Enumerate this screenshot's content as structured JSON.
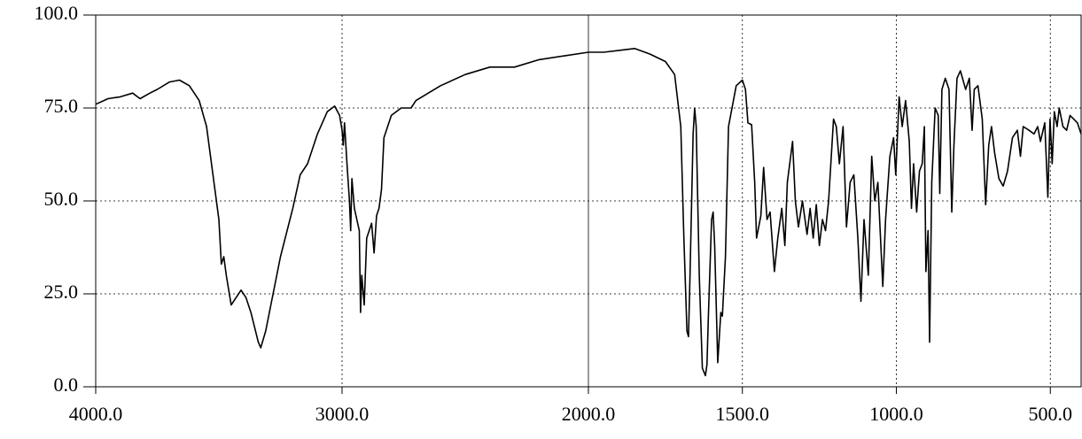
{
  "chart_data": {
    "type": "line",
    "x": [
      4000,
      3950,
      3900,
      3850,
      3820,
      3780,
      3750,
      3700,
      3660,
      3620,
      3580,
      3550,
      3520,
      3500,
      3490,
      3480,
      3470,
      3450,
      3430,
      3410,
      3390,
      3370,
      3340,
      3330,
      3310,
      3280,
      3250,
      3200,
      3170,
      3140,
      3100,
      3060,
      3030,
      3010,
      3000,
      2995,
      2990,
      2980,
      2970,
      2965,
      2960,
      2950,
      2940,
      2930,
      2925,
      2920,
      2910,
      2900,
      2880,
      2870,
      2860,
      2850,
      2840,
      2830,
      2800,
      2760,
      2720,
      2700,
      2650,
      2600,
      2500,
      2400,
      2300,
      2200,
      2100,
      2000,
      1950,
      1900,
      1850,
      1800,
      1750,
      1720,
      1700,
      1690,
      1680,
      1675,
      1670,
      1660,
      1655,
      1650,
      1640,
      1630,
      1620,
      1615,
      1610,
      1600,
      1595,
      1590,
      1580,
      1570,
      1565,
      1555,
      1545,
      1520,
      1500,
      1490,
      1482,
      1470,
      1460,
      1454,
      1440,
      1431,
      1420,
      1410,
      1396,
      1385,
      1372,
      1362,
      1354,
      1337,
      1328,
      1318,
      1305,
      1290,
      1280,
      1270,
      1260,
      1250,
      1240,
      1230,
      1220,
      1204,
      1195,
      1185,
      1173,
      1162,
      1150,
      1138,
      1125,
      1115,
      1105,
      1091,
      1080,
      1070,
      1060,
      1044,
      1035,
      1021,
      1009,
      1002,
      991,
      981,
      970,
      958,
      951,
      944,
      934,
      925,
      916,
      909,
      904,
      897,
      892,
      885,
      874,
      864,
      859,
      852,
      841,
      829,
      820,
      813,
      803,
      792,
      775,
      763,
      754,
      747,
      735,
      721,
      710,
      700,
      691,
      681,
      667,
      653,
      639,
      623,
      607,
      597,
      588,
      569,
      553,
      541,
      532,
      518,
      508,
      501,
      494,
      487,
      478,
      471,
      459,
      447,
      436,
      424,
      412,
      400
    ],
    "values": [
      76,
      77.5,
      78,
      79,
      77.5,
      79,
      80,
      82,
      82.5,
      81,
      77,
      70,
      55,
      45,
      33,
      35,
      30,
      22,
      24,
      26,
      24,
      20,
      12,
      10.5,
      15,
      25,
      35,
      48,
      57,
      60,
      68,
      74,
      75.5,
      73,
      69,
      65,
      71,
      60,
      50,
      42,
      56,
      48,
      45,
      42,
      20,
      30,
      22,
      40,
      44,
      36,
      46,
      48,
      53,
      67,
      73,
      75,
      75,
      77,
      79,
      81,
      84,
      86,
      86,
      88,
      89,
      90,
      90,
      90.5,
      91,
      89.5,
      87.5,
      84,
      70,
      40,
      15,
      13.5,
      30,
      68,
      75,
      70,
      30,
      5,
      3,
      6,
      20,
      45,
      47,
      38,
      6.5,
      20,
      19,
      35,
      70,
      81,
      82.5,
      80,
      71,
      70.5,
      55,
      40,
      46,
      59,
      45,
      47,
      31,
      40,
      48,
      38,
      55,
      66,
      50,
      43,
      50,
      41,
      48,
      40,
      49,
      38,
      45,
      42,
      50,
      72,
      70,
      60,
      70,
      43,
      55,
      57,
      40,
      23,
      45,
      30,
      62,
      50,
      55,
      27,
      45,
      62,
      67,
      57,
      78,
      70,
      77,
      66,
      48,
      60,
      47,
      58,
      60,
      70,
      31,
      42,
      12,
      55,
      75,
      73,
      52,
      80,
      83,
      80,
      47,
      65,
      83,
      85,
      80,
      83,
      69,
      80,
      81,
      72,
      49,
      65,
      70,
      63,
      56,
      54,
      58,
      67,
      69,
      62,
      70,
      69,
      68,
      70,
      66,
      71,
      51,
      72,
      60,
      74,
      70,
      75,
      70,
      69,
      73,
      72,
      71,
      68
    ],
    "color": "#000000",
    "xlim": [
      4000,
      400
    ],
    "x_scale_break": 2000,
    "xticks": [
      {
        "value": 4000,
        "label": "4000.0"
      },
      {
        "value": 3000,
        "label": "3000.0"
      },
      {
        "value": 2000,
        "label": "2000.0"
      },
      {
        "value": 1500,
        "label": "1500.0"
      },
      {
        "value": 1000,
        "label": "1000.0"
      },
      {
        "value": 500,
        "label": "500.0"
      }
    ],
    "ylim": [
      0,
      100
    ],
    "yticks": [
      {
        "value": 0,
        "label": "0.0"
      },
      {
        "value": 25,
        "label": "25.0"
      },
      {
        "value": 50,
        "label": "50.0"
      },
      {
        "value": 75,
        "label": "75.0"
      },
      {
        "value": 100,
        "label": "100.0"
      }
    ],
    "grid": true
  }
}
